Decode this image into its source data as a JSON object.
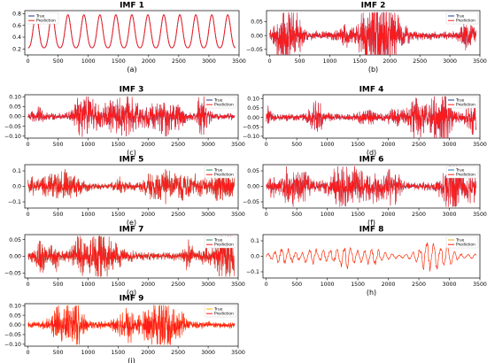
{
  "chart_data": [
    {
      "type": "line",
      "title": "IMF 1",
      "label": "(a)",
      "xlim": [
        0,
        3500
      ],
      "ylim": [
        0.1,
        0.85
      ],
      "xticks": [
        0,
        500,
        1000,
        1500,
        2000,
        2500,
        3000,
        3500
      ],
      "yticks": [
        0.2,
        0.4,
        0.6,
        0.8
      ],
      "ytick_labels": [
        "0.2",
        "0.4",
        "0.6",
        "0.8"
      ],
      "amplitude": 0.64,
      "legend": "top-left",
      "series": [
        {
          "name": "True",
          "color": "#1f3a93"
        },
        {
          "name": "Prediction",
          "color": "#ff1a1a"
        }
      ]
    },
    {
      "type": "line",
      "title": "IMF 2",
      "label": "(b)",
      "xlim": [
        0,
        3500
      ],
      "ylim": [
        -0.07,
        0.09
      ],
      "xticks": [
        0,
        500,
        1000,
        1500,
        2000,
        2500,
        3000,
        3500
      ],
      "yticks": [
        -0.05,
        0.0,
        0.05
      ],
      "ytick_labels": [
        "−0.05",
        "0.00",
        "0.05"
      ],
      "amplitude": 0.03,
      "legend": "top-right",
      "series": [
        {
          "name": "True",
          "color": "#1f3a93"
        },
        {
          "name": "Prediction",
          "color": "#ff1a1a"
        }
      ]
    },
    {
      "type": "line",
      "title": "IMF 3",
      "label": "(c)",
      "xlim": [
        0,
        3500
      ],
      "ylim": [
        -0.11,
        0.11
      ],
      "xticks": [
        0,
        500,
        1000,
        1500,
        2000,
        2500,
        3000,
        3500
      ],
      "yticks": [
        -0.1,
        -0.05,
        0.0,
        0.05,
        0.1
      ],
      "ytick_labels": [
        "−0.10",
        "−0.05",
        "0.00",
        "0.05",
        "0.10"
      ],
      "amplitude": 0.035,
      "legend": "top-right",
      "series": [
        {
          "name": "True",
          "color": "#1f3a93"
        },
        {
          "name": "Prediction",
          "color": "#ff1a1a"
        }
      ]
    },
    {
      "type": "line",
      "title": "IMF 4",
      "label": "(d)",
      "xlim": [
        0,
        3500
      ],
      "ylim": [
        -0.11,
        0.12
      ],
      "xticks": [
        0,
        500,
        1000,
        1500,
        2000,
        2500,
        3000,
        3500
      ],
      "yticks": [
        -0.1,
        -0.05,
        0.0,
        0.05,
        0.1
      ],
      "ytick_labels": [
        "−0.10",
        "−0.05",
        "0.00",
        "0.05",
        "0.10"
      ],
      "amplitude": 0.035,
      "legend": "top-right",
      "series": [
        {
          "name": "True",
          "color": "#1f3a93"
        },
        {
          "name": "Prediction",
          "color": "#ff1a1a"
        }
      ]
    },
    {
      "type": "line",
      "title": "IMF 5",
      "label": "(e)",
      "xlim": [
        0,
        3500
      ],
      "ylim": [
        -0.14,
        0.14
      ],
      "xticks": [
        0,
        500,
        1000,
        1500,
        2000,
        2500,
        3000,
        3500
      ],
      "yticks": [
        -0.1,
        0.0,
        0.1
      ],
      "ytick_labels": [
        "−0.1",
        "0.0",
        "0.1"
      ],
      "amplitude": 0.04,
      "legend": "top-right",
      "series": [
        {
          "name": "True",
          "color": "#2e8b57"
        },
        {
          "name": "Prediction",
          "color": "#ff1a1a"
        }
      ]
    },
    {
      "type": "line",
      "title": "IMF 6",
      "label": "(f)",
      "xlim": [
        0,
        3500
      ],
      "ylim": [
        -0.07,
        0.07
      ],
      "xticks": [
        0,
        500,
        1000,
        1500,
        2000,
        2500,
        3000,
        3500
      ],
      "yticks": [
        -0.05,
        0.0,
        0.05
      ],
      "ytick_labels": [
        "−0.05",
        "0.00",
        "0.05"
      ],
      "amplitude": 0.028,
      "legend": "top-right",
      "series": [
        {
          "name": "True",
          "color": "#1f77b4"
        },
        {
          "name": "Prediction",
          "color": "#ff1a1a"
        }
      ]
    },
    {
      "type": "line",
      "title": "IMF 7",
      "label": "(g)",
      "xlim": [
        0,
        3500
      ],
      "ylim": [
        -0.065,
        0.065
      ],
      "xticks": [
        0,
        500,
        1000,
        1500,
        2000,
        2500,
        3000,
        3500
      ],
      "yticks": [
        -0.05,
        0.0,
        0.05
      ],
      "ytick_labels": [
        "−0.05",
        "0.00",
        "0.05"
      ],
      "amplitude": 0.025,
      "legend": "top-right",
      "series": [
        {
          "name": "True",
          "color": "#2e8b57"
        },
        {
          "name": "Prediction",
          "color": "#ff1a1a"
        }
      ]
    },
    {
      "type": "line",
      "title": "IMF 8",
      "label": "(h)",
      "xlim": [
        0,
        3500
      ],
      "ylim": [
        -0.14,
        0.14
      ],
      "xticks": [
        0,
        500,
        1000,
        1500,
        2000,
        2500,
        3000,
        3500
      ],
      "yticks": [
        -0.1,
        0.0,
        0.1
      ],
      "ytick_labels": [
        "−0.1",
        "0.0",
        "0.1"
      ],
      "amplitude": 0.03,
      "legend": "top-right",
      "series": [
        {
          "name": "True",
          "color": "#e6a817"
        },
        {
          "name": "Prediction",
          "color": "#ff1a1a"
        }
      ]
    },
    {
      "type": "line",
      "title": "IMF 9",
      "label": "(i)",
      "xlim": [
        0,
        3500
      ],
      "ylim": [
        -0.11,
        0.11
      ],
      "xticks": [
        0,
        500,
        1000,
        1500,
        2000,
        2500,
        3000,
        3500
      ],
      "yticks": [
        -0.1,
        -0.05,
        0.0,
        0.05,
        0.1
      ],
      "ytick_labels": [
        "−0.10",
        "−0.05",
        "0.00",
        "0.05",
        "0.10"
      ],
      "amplitude": 0.035,
      "legend": "top-right",
      "series": [
        {
          "name": "True",
          "color": "#ffb000"
        },
        {
          "name": "Prediction",
          "color": "#ff1a1a"
        }
      ]
    }
  ]
}
